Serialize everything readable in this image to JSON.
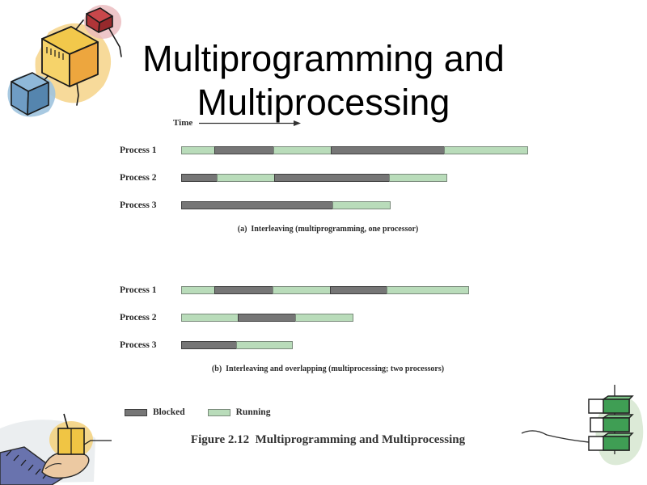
{
  "title": "Multiprogramming and Multiprocessing",
  "decorations": [
    "watercolor-cubes-clipart",
    "hand-holding-cube-clipart",
    "green-blocks-clipart"
  ],
  "chart_data": {
    "type": "gantt-timeline",
    "time_axis_label": "Time",
    "caption": "Figure 2.12  Multiprogramming and Multiprocessing",
    "states": {
      "blocked": {
        "label": "Blocked",
        "color": "#767676",
        "border": "#3e3e3e"
      },
      "running": {
        "label": "Running",
        "color": "#b9dcba",
        "border": "#7a8a7b"
      }
    },
    "legend_order": [
      "blocked",
      "running"
    ],
    "timeline_unit": "percent-of-full-time-axis",
    "charts": [
      {
        "id": "a",
        "caption": "(a)  Interleaving (multiprogramming, one processor)",
        "rows": [
          {
            "label": "Process 1",
            "segments": [
              {
                "state": "running",
                "pct": 9.7
              },
              {
                "state": "blocked",
                "pct": 17.1
              },
              {
                "state": "running",
                "pct": 16.6
              },
              {
                "state": "blocked",
                "pct": 32.6
              },
              {
                "state": "running",
                "pct": 24.0
              }
            ]
          },
          {
            "label": "Process 2",
            "segments": [
              {
                "state": "blocked",
                "pct": 10.4
              },
              {
                "state": "running",
                "pct": 16.6
              },
              {
                "state": "blocked",
                "pct": 33.0
              },
              {
                "state": "running",
                "pct": 16.6
              }
            ]
          },
          {
            "label": "Process 3",
            "segments": [
              {
                "state": "blocked",
                "pct": 43.4
              },
              {
                "state": "running",
                "pct": 16.6
              }
            ]
          }
        ]
      },
      {
        "id": "b",
        "caption": "(b)  Interleaving and overlapping (multiprocessing; two processors)",
        "rows": [
          {
            "label": "Process 1",
            "segments": [
              {
                "state": "running",
                "pct": 9.7
              },
              {
                "state": "blocked",
                "pct": 16.9
              },
              {
                "state": "running",
                "pct": 16.6
              },
              {
                "state": "blocked",
                "pct": 16.4
              },
              {
                "state": "running",
                "pct": 23.6
              }
            ]
          },
          {
            "label": "Process 2",
            "segments": [
              {
                "state": "running",
                "pct": 16.4
              },
              {
                "state": "blocked",
                "pct": 16.6
              },
              {
                "state": "running",
                "pct": 16.6
              }
            ]
          },
          {
            "label": "Process 3",
            "segments": [
              {
                "state": "blocked",
                "pct": 15.9
              },
              {
                "state": "running",
                "pct": 16.2
              }
            ]
          }
        ]
      }
    ]
  }
}
